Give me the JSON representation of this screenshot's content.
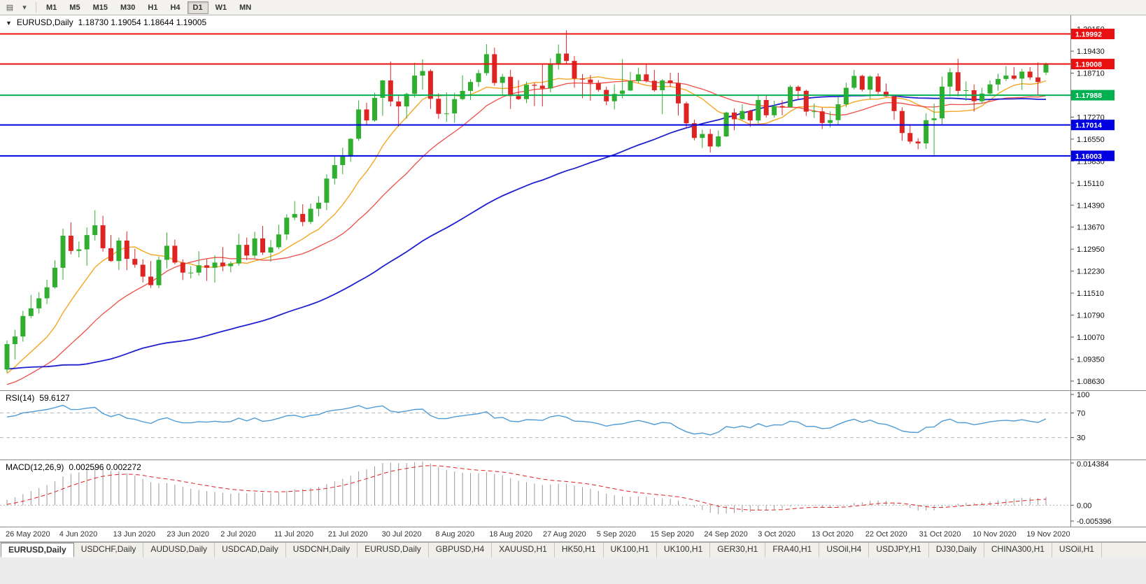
{
  "toolbar": {
    "timeframes": [
      "M1",
      "M5",
      "M15",
      "M30",
      "H1",
      "H4",
      "D1",
      "W1",
      "MN"
    ],
    "active_timeframe": "D1",
    "icons": [
      {
        "name": "chart-window-icon",
        "glyph": "▤"
      },
      {
        "name": "dropdown-icon",
        "glyph": "▾"
      }
    ]
  },
  "main_chart": {
    "marker": "▼",
    "title": "EURUSD,Daily",
    "ohlc_text": "1.18730 1.19054 1.18644 1.19005"
  },
  "rsi_panel": {
    "label": "RSI(14)",
    "value": "59.6127"
  },
  "macd_panel": {
    "label": "MACD(12,26,9)",
    "values_text": "0.002596 0.002272"
  },
  "chart_data": {
    "type": "candlestick",
    "symbol": "EURUSD",
    "timeframe": "Daily",
    "ylim": [
      1.0833,
      1.206
    ],
    "up_color": "#2fae2f",
    "down_color": "#de2323",
    "price_ticks": [
      "1.20150",
      "1.19430",
      "1.18710",
      "1.17990",
      "1.17270",
      "1.16550",
      "1.15830",
      "1.15110",
      "1.14390",
      "1.13670",
      "1.12950",
      "1.12230",
      "1.11510",
      "1.10790",
      "1.10070",
      "1.09350",
      "1.08630"
    ],
    "x_labels": [
      "26 May 2020",
      "4 Jun 2020",
      "13 Jun 2020",
      "23 Jun 2020",
      "2 Jul 2020",
      "11 Jul 2020",
      "21 Jul 2020",
      "30 Jul 2020",
      "8 Aug 2020",
      "18 Aug 2020",
      "27 Aug 2020",
      "5 Sep 2020",
      "15 Sep 2020",
      "24 Sep 2020",
      "3 Oct 2020",
      "13 Oct 2020",
      "22 Oct 2020",
      "31 Oct 2020",
      "10 Nov 2020",
      "19 Nov 2020"
    ],
    "hlines": [
      {
        "price": 1.19992,
        "color": "#e81010",
        "label": "1.19992"
      },
      {
        "price": 1.19008,
        "color": "#e81010",
        "label": "1.19008"
      },
      {
        "price": 1.17988,
        "color": "#00b050",
        "label": "1.17988"
      },
      {
        "price": 1.17014,
        "color": "#0000e0",
        "label": "1.17014"
      },
      {
        "price": 1.16003,
        "color": "#0000e0",
        "label": "1.16003"
      }
    ],
    "moving_averages": [
      {
        "period": 10,
        "color": "#f5a623",
        "width": 1.4
      },
      {
        "period": 21,
        "color": "#f04e45",
        "width": 1.3
      },
      {
        "period": 60,
        "color": "#2020d0",
        "width": 1.8
      }
    ],
    "rsi_color": "#4f9bd5",
    "rsi_levels": [
      70,
      30
    ],
    "rsi_ticks": [
      "100",
      "70",
      "30"
    ],
    "macd_ylim": [
      -0.005396,
      0.014384
    ],
    "macd_ticks": [
      "0.014384",
      "0.00",
      "-0.005396"
    ],
    "macd_hist_color": "#9a9a9a",
    "macd_signal_color": "#e02020",
    "seed_closes": [
      1.085,
      1.088,
      1.093,
      1.1,
      1.108,
      1.113,
      1.11,
      1.114,
      1.128,
      1.13,
      1.114,
      1.106,
      1.098,
      1.092,
      1.085,
      1.072,
      1.066,
      1.069,
      1.08,
      1.089,
      1.1,
      1.106,
      1.103,
      1.096,
      1.089,
      1.083,
      1.079,
      1.081,
      1.085,
      1.087,
      1.09,
      1.093,
      1.086,
      1.08,
      1.077,
      1.082,
      1.087,
      1.089,
      1.091,
      1.087,
      1.084,
      1.081,
      1.079,
      1.082,
      1.0845,
      1.0865,
      1.082,
      1.078,
      1.08,
      1.083,
      1.081,
      1.0795,
      1.0825,
      1.0865,
      1.0895,
      1.092,
      1.09,
      1.088,
      1.09,
      1.092
    ],
    "candles": [
      [
        1.0901,
        1.0996,
        1.0891,
        1.0984
      ],
      [
        1.0984,
        1.1031,
        1.0934,
        1.1009
      ],
      [
        1.1009,
        1.1093,
        1.0992,
        1.1076
      ],
      [
        1.1076,
        1.1145,
        1.1069,
        1.1101
      ],
      [
        1.1101,
        1.1154,
        1.1084,
        1.1134
      ],
      [
        1.1134,
        1.1195,
        1.1115,
        1.117
      ],
      [
        1.117,
        1.1258,
        1.1166,
        1.1234
      ],
      [
        1.1234,
        1.1362,
        1.1195,
        1.1339
      ],
      [
        1.1339,
        1.1383,
        1.1278,
        1.1289
      ],
      [
        1.1289,
        1.132,
        1.1268,
        1.1294
      ],
      [
        1.1294,
        1.1366,
        1.1241,
        1.1341
      ],
      [
        1.1341,
        1.1422,
        1.1323,
        1.1373
      ],
      [
        1.1373,
        1.1404,
        1.1287,
        1.1298
      ],
      [
        1.1298,
        1.1341,
        1.1253,
        1.1256
      ],
      [
        1.1256,
        1.1333,
        1.1227,
        1.1323
      ],
      [
        1.1323,
        1.1353,
        1.1226,
        1.1263
      ],
      [
        1.1263,
        1.1296,
        1.1234,
        1.1244
      ],
      [
        1.1244,
        1.1262,
        1.1186,
        1.1205
      ],
      [
        1.1205,
        1.1256,
        1.1168,
        1.1177
      ],
      [
        1.1177,
        1.1271,
        1.1168,
        1.126
      ],
      [
        1.126,
        1.1349,
        1.1233,
        1.1306
      ],
      [
        1.1306,
        1.1326,
        1.1245,
        1.1251
      ],
      [
        1.1251,
        1.1261,
        1.1194,
        1.1218
      ],
      [
        1.1218,
        1.1239,
        1.1199,
        1.1218
      ],
      [
        1.1218,
        1.1288,
        1.1208,
        1.1242
      ],
      [
        1.1242,
        1.1262,
        1.1191,
        1.1234
      ],
      [
        1.1234,
        1.1275,
        1.1185,
        1.1251
      ],
      [
        1.1251,
        1.1302,
        1.1223,
        1.1239
      ],
      [
        1.1239,
        1.1254,
        1.1219,
        1.1248
      ],
      [
        1.1248,
        1.1345,
        1.1241,
        1.1309
      ],
      [
        1.1309,
        1.1333,
        1.1259,
        1.1274
      ],
      [
        1.1274,
        1.1352,
        1.1265,
        1.133
      ],
      [
        1.133,
        1.1371,
        1.1276,
        1.1284
      ],
      [
        1.1284,
        1.1325,
        1.1254,
        1.1301
      ],
      [
        1.1301,
        1.1375,
        1.1295,
        1.1343
      ],
      [
        1.1343,
        1.1409,
        1.1325,
        1.1398
      ],
      [
        1.1398,
        1.1452,
        1.139,
        1.141
      ],
      [
        1.141,
        1.1442,
        1.137,
        1.1384
      ],
      [
        1.1384,
        1.1444,
        1.1377,
        1.1427
      ],
      [
        1.1427,
        1.1468,
        1.1402,
        1.1447
      ],
      [
        1.1447,
        1.154,
        1.1422,
        1.1526
      ],
      [
        1.1526,
        1.1601,
        1.1507,
        1.157
      ],
      [
        1.157,
        1.1627,
        1.154,
        1.1598
      ],
      [
        1.1598,
        1.1658,
        1.1581,
        1.1656
      ],
      [
        1.1656,
        1.1782,
        1.1649,
        1.1752
      ],
      [
        1.1752,
        1.1774,
        1.17,
        1.1716
      ],
      [
        1.1716,
        1.1807,
        1.1712,
        1.179
      ],
      [
        1.179,
        1.1849,
        1.1731,
        1.1847
      ],
      [
        1.1847,
        1.1909,
        1.1762,
        1.1778
      ],
      [
        1.1778,
        1.1797,
        1.1696,
        1.1762
      ],
      [
        1.1762,
        1.1807,
        1.1722,
        1.1803
      ],
      [
        1.1803,
        1.1905,
        1.1791,
        1.1863
      ],
      [
        1.1863,
        1.1916,
        1.1817,
        1.1878
      ],
      [
        1.1878,
        1.1884,
        1.1754,
        1.1787
      ],
      [
        1.1787,
        1.1805,
        1.1722,
        1.1738
      ],
      [
        1.1738,
        1.1808,
        1.1711,
        1.1739
      ],
      [
        1.1739,
        1.1807,
        1.1709,
        1.1786
      ],
      [
        1.1786,
        1.1864,
        1.1782,
        1.1813
      ],
      [
        1.1813,
        1.1851,
        1.1783,
        1.1842
      ],
      [
        1.1842,
        1.1882,
        1.1826,
        1.1871
      ],
      [
        1.1871,
        1.1966,
        1.1863,
        1.1933
      ],
      [
        1.1933,
        1.1954,
        1.183,
        1.1839
      ],
      [
        1.1839,
        1.1869,
        1.1801,
        1.1859
      ],
      [
        1.1859,
        1.1882,
        1.1754,
        1.1796
      ],
      [
        1.1796,
        1.1848,
        1.1783,
        1.1786
      ],
      [
        1.1786,
        1.1843,
        1.1773,
        1.1833
      ],
      [
        1.1833,
        1.1839,
        1.1763,
        1.183
      ],
      [
        1.183,
        1.1901,
        1.1762,
        1.1821
      ],
      [
        1.1821,
        1.192,
        1.1808,
        1.1903
      ],
      [
        1.1903,
        1.1965,
        1.1883,
        1.1935
      ],
      [
        1.1935,
        1.2011,
        1.1899,
        1.1911
      ],
      [
        1.1911,
        1.1927,
        1.1823,
        1.1853
      ],
      [
        1.1853,
        1.1868,
        1.1789,
        1.185
      ],
      [
        1.185,
        1.1865,
        1.1781,
        1.1839
      ],
      [
        1.1839,
        1.1848,
        1.181,
        1.1816
      ],
      [
        1.1816,
        1.1827,
        1.1766,
        1.1779
      ],
      [
        1.1779,
        1.1834,
        1.1752,
        1.1803
      ],
      [
        1.1803,
        1.1917,
        1.1788,
        1.1814
      ],
      [
        1.1814,
        1.1875,
        1.1812,
        1.1845
      ],
      [
        1.1845,
        1.1888,
        1.1839,
        1.1867
      ],
      [
        1.1867,
        1.19,
        1.184,
        1.1846
      ],
      [
        1.1846,
        1.1882,
        1.181,
        1.1815
      ],
      [
        1.1815,
        1.1852,
        1.1737,
        1.1847
      ],
      [
        1.1847,
        1.1872,
        1.1826,
        1.1839
      ],
      [
        1.1839,
        1.1872,
        1.1732,
        1.1772
      ],
      [
        1.1772,
        1.1778,
        1.1692,
        1.1707
      ],
      [
        1.1707,
        1.1719,
        1.1651,
        1.1659
      ],
      [
        1.1659,
        1.1686,
        1.1626,
        1.1672
      ],
      [
        1.1672,
        1.1688,
        1.1611,
        1.1631
      ],
      [
        1.1631,
        1.1683,
        1.1628,
        1.1664
      ],
      [
        1.1664,
        1.1745,
        1.1662,
        1.1742
      ],
      [
        1.1742,
        1.1755,
        1.1684,
        1.172
      ],
      [
        1.172,
        1.1769,
        1.1717,
        1.1747
      ],
      [
        1.1747,
        1.1751,
        1.1695,
        1.1716
      ],
      [
        1.1716,
        1.1797,
        1.1706,
        1.1783
      ],
      [
        1.1783,
        1.1798,
        1.1725,
        1.1733
      ],
      [
        1.1733,
        1.1781,
        1.1725,
        1.1763
      ],
      [
        1.1763,
        1.1782,
        1.1733,
        1.176
      ],
      [
        1.176,
        1.1831,
        1.1758,
        1.1826
      ],
      [
        1.1826,
        1.1831,
        1.1785,
        1.1813
      ],
      [
        1.1813,
        1.1817,
        1.1731,
        1.1745
      ],
      [
        1.1745,
        1.1772,
        1.1724,
        1.1746
      ],
      [
        1.1746,
        1.1758,
        1.1688,
        1.1708
      ],
      [
        1.1708,
        1.1746,
        1.1694,
        1.1717
      ],
      [
        1.1717,
        1.1794,
        1.1703,
        1.1769
      ],
      [
        1.1769,
        1.184,
        1.176,
        1.1823
      ],
      [
        1.1823,
        1.1881,
        1.1817,
        1.1862
      ],
      [
        1.1862,
        1.1866,
        1.1811,
        1.1817
      ],
      [
        1.1817,
        1.1864,
        1.1786,
        1.186
      ],
      [
        1.186,
        1.187,
        1.1803,
        1.181
      ],
      [
        1.181,
        1.1837,
        1.1793,
        1.1795
      ],
      [
        1.1795,
        1.18,
        1.1718,
        1.1747
      ],
      [
        1.1747,
        1.1759,
        1.165,
        1.1675
      ],
      [
        1.1675,
        1.1704,
        1.164,
        1.1647
      ],
      [
        1.1647,
        1.1658,
        1.1622,
        1.1641
      ],
      [
        1.1641,
        1.174,
        1.1623,
        1.1717
      ],
      [
        1.1717,
        1.1771,
        1.1603,
        1.1723
      ],
      [
        1.1723,
        1.186,
        1.1702,
        1.1827
      ],
      [
        1.1827,
        1.1887,
        1.1795,
        1.1874
      ],
      [
        1.1874,
        1.1918,
        1.1795,
        1.1813
      ],
      [
        1.1813,
        1.1844,
        1.1781,
        1.1815
      ],
      [
        1.1815,
        1.1834,
        1.1745,
        1.1779
      ],
      [
        1.1779,
        1.1823,
        1.1771,
        1.1804
      ],
      [
        1.1804,
        1.1847,
        1.1799,
        1.1834
      ],
      [
        1.1834,
        1.1869,
        1.1814,
        1.1852
      ],
      [
        1.1852,
        1.1894,
        1.1845,
        1.1863
      ],
      [
        1.1863,
        1.1891,
        1.1849,
        1.1853
      ],
      [
        1.1853,
        1.1885,
        1.1816,
        1.1876
      ],
      [
        1.1876,
        1.1891,
        1.1849,
        1.1857
      ],
      [
        1.1857,
        1.1906,
        1.18,
        1.1842
      ],
      [
        1.1873,
        1.19054,
        1.18644,
        1.19005
      ]
    ]
  },
  "tabs": {
    "active_index": 0,
    "labels": [
      "EURUSD,Daily",
      "USDCHF,Daily",
      "AUDUSD,Daily",
      "USDCAD,Daily",
      "USDCNH,Daily",
      "EURUSD,Daily",
      "GBPUSD,H4",
      "XAUUSD,H1",
      "HK50,H1",
      "UK100,H1",
      "UK100,H1",
      "GER30,H1",
      "FRA40,H1",
      "USOil,H4",
      "USDJPY,H1",
      "DJ30,Daily",
      "CHINA300,H1",
      "USOil,H1"
    ]
  }
}
